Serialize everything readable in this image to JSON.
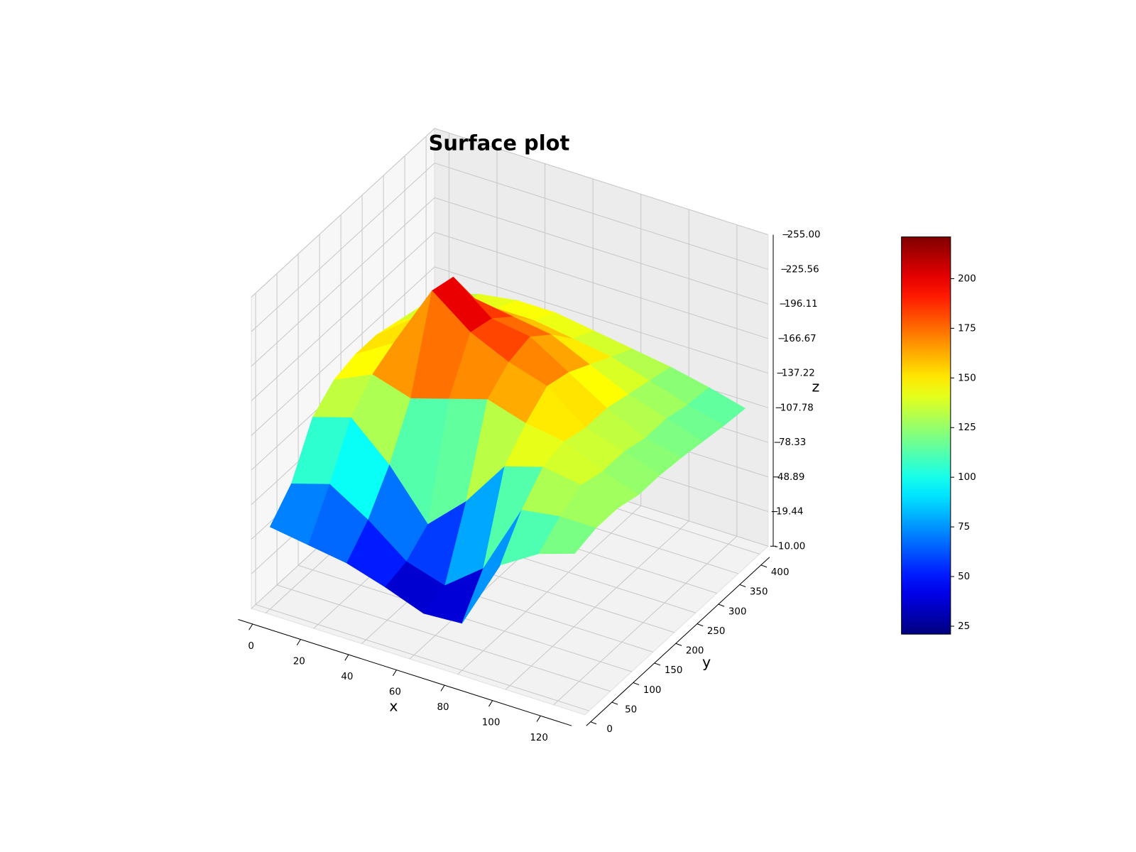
{
  "chart_data": {
    "type": "surface",
    "title": "Surface plot",
    "xlabel": "x",
    "ylabel": "y",
    "zlabel": "z",
    "x": [
      0,
      16,
      32,
      48,
      64,
      80,
      96,
      112,
      127
    ],
    "y": [
      0,
      50,
      100,
      150,
      200,
      250,
      300,
      350,
      400
    ],
    "z": [
      [
        60,
        55,
        50,
        40,
        28,
        30,
        90,
        110,
        120
      ],
      [
        80,
        90,
        70,
        45,
        35,
        60,
        120,
        125,
        125
      ],
      [
        120,
        130,
        100,
        60,
        90,
        130,
        140,
        135,
        125
      ],
      [
        135,
        150,
        140,
        150,
        160,
        150,
        145,
        130,
        120
      ],
      [
        140,
        160,
        215,
        190,
        175,
        165,
        140,
        130,
        120
      ],
      [
        140,
        165,
        210,
        185,
        180,
        160,
        140,
        125,
        118
      ],
      [
        135,
        150,
        175,
        170,
        165,
        150,
        135,
        125,
        115
      ],
      [
        130,
        140,
        150,
        150,
        145,
        140,
        130,
        120,
        112
      ],
      [
        125,
        135,
        140,
        140,
        135,
        130,
        125,
        118,
        110
      ]
    ],
    "xlim": [
      -6,
      133
    ],
    "ylim": [
      -10,
      420
    ],
    "zlim": [
      -10,
      255
    ],
    "xticks": [
      0,
      20,
      40,
      60,
      80,
      100,
      120
    ],
    "yticks": [
      0,
      50,
      100,
      150,
      200,
      250,
      300,
      350,
      400
    ],
    "zticks": [
      {
        "value": -10,
        "label": "-10.00"
      },
      19.44,
      48.89,
      78.33,
      107.78,
      137.22,
      166.67,
      196.11,
      225.56,
      {
        "value": 255,
        "label": "255.00"
      }
    ],
    "grid": true,
    "colormap": "jet",
    "clim": [
      21,
      221
    ],
    "colorbar_ticks": [
      25,
      50,
      75,
      100,
      125,
      150,
      175,
      200
    ]
  }
}
